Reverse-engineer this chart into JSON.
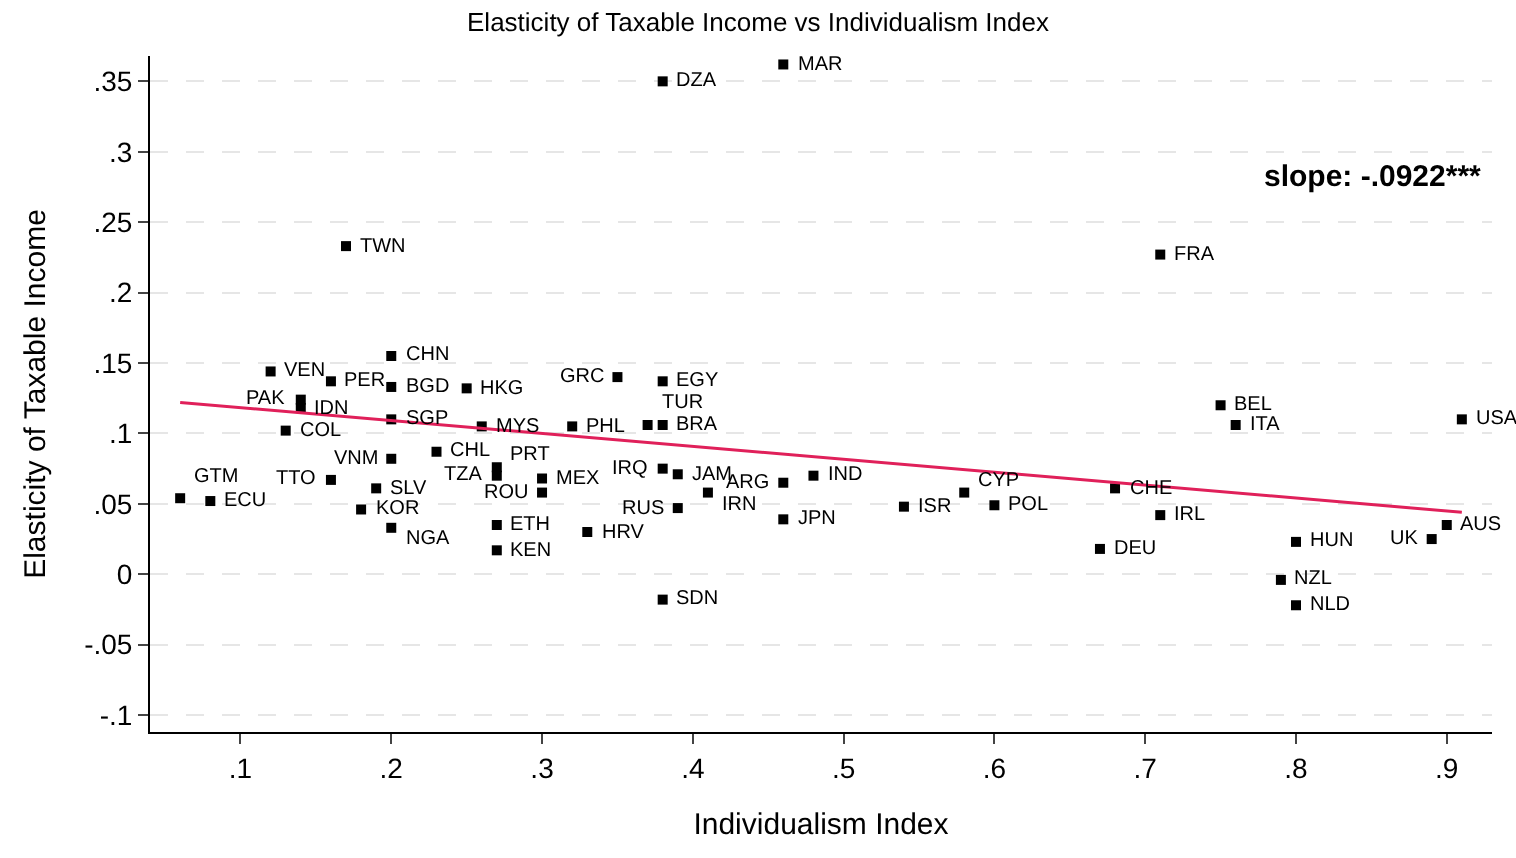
{
  "chart_data": {
    "type": "scatter",
    "title": "Elasticity of Taxable Income vs Individualism Index",
    "xlabel": "Individualism Index",
    "ylabel": "Elasticity of Taxable Income",
    "xlim": [
      0.04,
      0.93
    ],
    "ylim": [
      -0.112,
      0.368
    ],
    "xticks": [
      {
        "value": 0.1,
        "label": ".1"
      },
      {
        "value": 0.2,
        "label": ".2"
      },
      {
        "value": 0.3,
        "label": ".3"
      },
      {
        "value": 0.4,
        "label": ".4"
      },
      {
        "value": 0.5,
        "label": ".5"
      },
      {
        "value": 0.6,
        "label": ".6"
      },
      {
        "value": 0.7,
        "label": ".7"
      },
      {
        "value": 0.8,
        "label": ".8"
      },
      {
        "value": 0.9,
        "label": ".9"
      }
    ],
    "yticks": [
      {
        "value": -0.1,
        "label": "-.1"
      },
      {
        "value": -0.05,
        "label": "-.05"
      },
      0,
      {
        "value": 0.05,
        "label": ".05"
      },
      {
        "value": 0.1,
        "label": ".1"
      },
      {
        "value": 0.15,
        "label": ".15"
      },
      {
        "value": 0.2,
        "label": ".2"
      },
      {
        "value": 0.25,
        "label": ".25"
      },
      {
        "value": 0.3,
        "label": ".3"
      },
      {
        "value": 0.35,
        "label": ".35"
      }
    ],
    "grid": "y",
    "series": [
      {
        "marker": "square",
        "color": "#000000",
        "x": [
          0.06,
          0.08,
          0.12,
          0.16,
          0.14,
          0.14,
          0.13,
          0.2,
          0.2,
          0.2,
          0.2,
          0.23,
          0.25,
          0.26,
          0.32,
          0.35,
          0.16,
          0.19,
          0.18,
          0.2,
          0.27,
          0.27,
          0.3,
          0.3,
          0.27,
          0.27,
          0.33,
          0.38,
          0.37,
          0.38,
          0.38,
          0.39,
          0.41,
          0.39,
          0.38,
          0.46,
          0.48,
          0.46,
          0.54,
          0.58,
          0.6,
          0.68,
          0.71,
          0.67,
          0.75,
          0.76,
          0.71,
          0.91,
          0.9,
          0.89,
          0.8,
          0.79,
          0.8,
          0.38,
          0.46,
          0.17
        ],
        "values": [
          0.054,
          0.052,
          0.144,
          0.137,
          0.124,
          0.118,
          0.102,
          0.155,
          0.133,
          0.11,
          0.082,
          0.087,
          0.132,
          0.105,
          0.105,
          0.14,
          0.067,
          0.061,
          0.046,
          0.033,
          0.076,
          0.07,
          0.068,
          0.058,
          0.035,
          0.017,
          0.03,
          0.137,
          0.106,
          0.106,
          0.075,
          0.071,
          0.058,
          0.047,
          -0.018,
          0.065,
          0.07,
          0.039,
          0.048,
          0.058,
          0.049,
          0.061,
          0.042,
          0.018,
          0.12,
          0.106,
          0.227,
          0.11,
          0.035,
          0.025,
          0.023,
          -0.004,
          -0.022,
          0.35,
          0.362,
          0.233
        ]
      },
      {
        "type": "line",
        "color": "#e0205a",
        "x": [
          0.06,
          0.91
        ],
        "values": [
          0.122,
          0.044
        ]
      }
    ],
    "annotations": [
      {
        "text": "GTM",
        "x": 0.06,
        "y": 0.054
      },
      {
        "text": "ECU",
        "x": 0.08,
        "y": 0.052
      },
      {
        "text": "VEN",
        "x": 0.12,
        "y": 0.144
      },
      {
        "text": "PER",
        "x": 0.16,
        "y": 0.137
      },
      {
        "text": "PAK",
        "x": 0.14,
        "y": 0.124
      },
      {
        "text": "IDN",
        "x": 0.14,
        "y": 0.118
      },
      {
        "text": "COL",
        "x": 0.13,
        "y": 0.102
      },
      {
        "text": "CHN",
        "x": 0.2,
        "y": 0.155
      },
      {
        "text": "BGD",
        "x": 0.2,
        "y": 0.133
      },
      {
        "text": "SGP",
        "x": 0.2,
        "y": 0.11
      },
      {
        "text": "VNM",
        "x": 0.2,
        "y": 0.082
      },
      {
        "text": "CHL",
        "x": 0.23,
        "y": 0.087
      },
      {
        "text": "HKG",
        "x": 0.25,
        "y": 0.132
      },
      {
        "text": "MYS",
        "x": 0.26,
        "y": 0.105
      },
      {
        "text": "PHL",
        "x": 0.32,
        "y": 0.105
      },
      {
        "text": "GRC",
        "x": 0.35,
        "y": 0.14
      },
      {
        "text": "TTO",
        "x": 0.16,
        "y": 0.067
      },
      {
        "text": "SLV",
        "x": 0.19,
        "y": 0.061
      },
      {
        "text": "KOR",
        "x": 0.18,
        "y": 0.046
      },
      {
        "text": "NGA",
        "x": 0.2,
        "y": 0.033
      },
      {
        "text": "PRT",
        "x": 0.27,
        "y": 0.076
      },
      {
        "text": "TZA",
        "x": 0.27,
        "y": 0.07
      },
      {
        "text": "MEX",
        "x": 0.3,
        "y": 0.068
      },
      {
        "text": "ROU",
        "x": 0.3,
        "y": 0.058
      },
      {
        "text": "ETH",
        "x": 0.27,
        "y": 0.035
      },
      {
        "text": "KEN",
        "x": 0.27,
        "y": 0.017
      },
      {
        "text": "HRV",
        "x": 0.33,
        "y": 0.03
      },
      {
        "text": "EGY",
        "x": 0.38,
        "y": 0.137
      },
      {
        "text": "TUR",
        "x": 0.37,
        "y": 0.106
      },
      {
        "text": "BRA",
        "x": 0.38,
        "y": 0.106
      },
      {
        "text": "IRQ",
        "x": 0.38,
        "y": 0.075
      },
      {
        "text": "JAM",
        "x": 0.39,
        "y": 0.071
      },
      {
        "text": "IRN",
        "x": 0.41,
        "y": 0.058
      },
      {
        "text": "RUS",
        "x": 0.39,
        "y": 0.047
      },
      {
        "text": "SDN",
        "x": 0.38,
        "y": -0.018
      },
      {
        "text": "ARG",
        "x": 0.46,
        "y": 0.065
      },
      {
        "text": "IND",
        "x": 0.48,
        "y": 0.07
      },
      {
        "text": "JPN",
        "x": 0.46,
        "y": 0.039
      },
      {
        "text": "ISR",
        "x": 0.54,
        "y": 0.048
      },
      {
        "text": "CYP",
        "x": 0.58,
        "y": 0.058
      },
      {
        "text": "POL",
        "x": 0.6,
        "y": 0.049
      },
      {
        "text": "CHE",
        "x": 0.68,
        "y": 0.061
      },
      {
        "text": "IRL",
        "x": 0.71,
        "y": 0.042
      },
      {
        "text": "DEU",
        "x": 0.67,
        "y": 0.018
      },
      {
        "text": "BEL",
        "x": 0.75,
        "y": 0.12
      },
      {
        "text": "ITA",
        "x": 0.76,
        "y": 0.106
      },
      {
        "text": "FRA",
        "x": 0.71,
        "y": 0.227
      },
      {
        "text": "USA",
        "x": 0.91,
        "y": 0.11
      },
      {
        "text": "AUS",
        "x": 0.9,
        "y": 0.035
      },
      {
        "text": "UK",
        "x": 0.89,
        "y": 0.025
      },
      {
        "text": "HUN",
        "x": 0.8,
        "y": 0.023
      },
      {
        "text": "NZL",
        "x": 0.79,
        "y": -0.004
      },
      {
        "text": "NLD",
        "x": 0.8,
        "y": -0.022
      },
      {
        "text": "DZA",
        "x": 0.38,
        "y": 0.35
      },
      {
        "text": "MAR",
        "x": 0.46,
        "y": 0.362
      },
      {
        "text": "TWN",
        "x": 0.17,
        "y": 0.233
      },
      "slope: -.0922***"
    ]
  }
}
